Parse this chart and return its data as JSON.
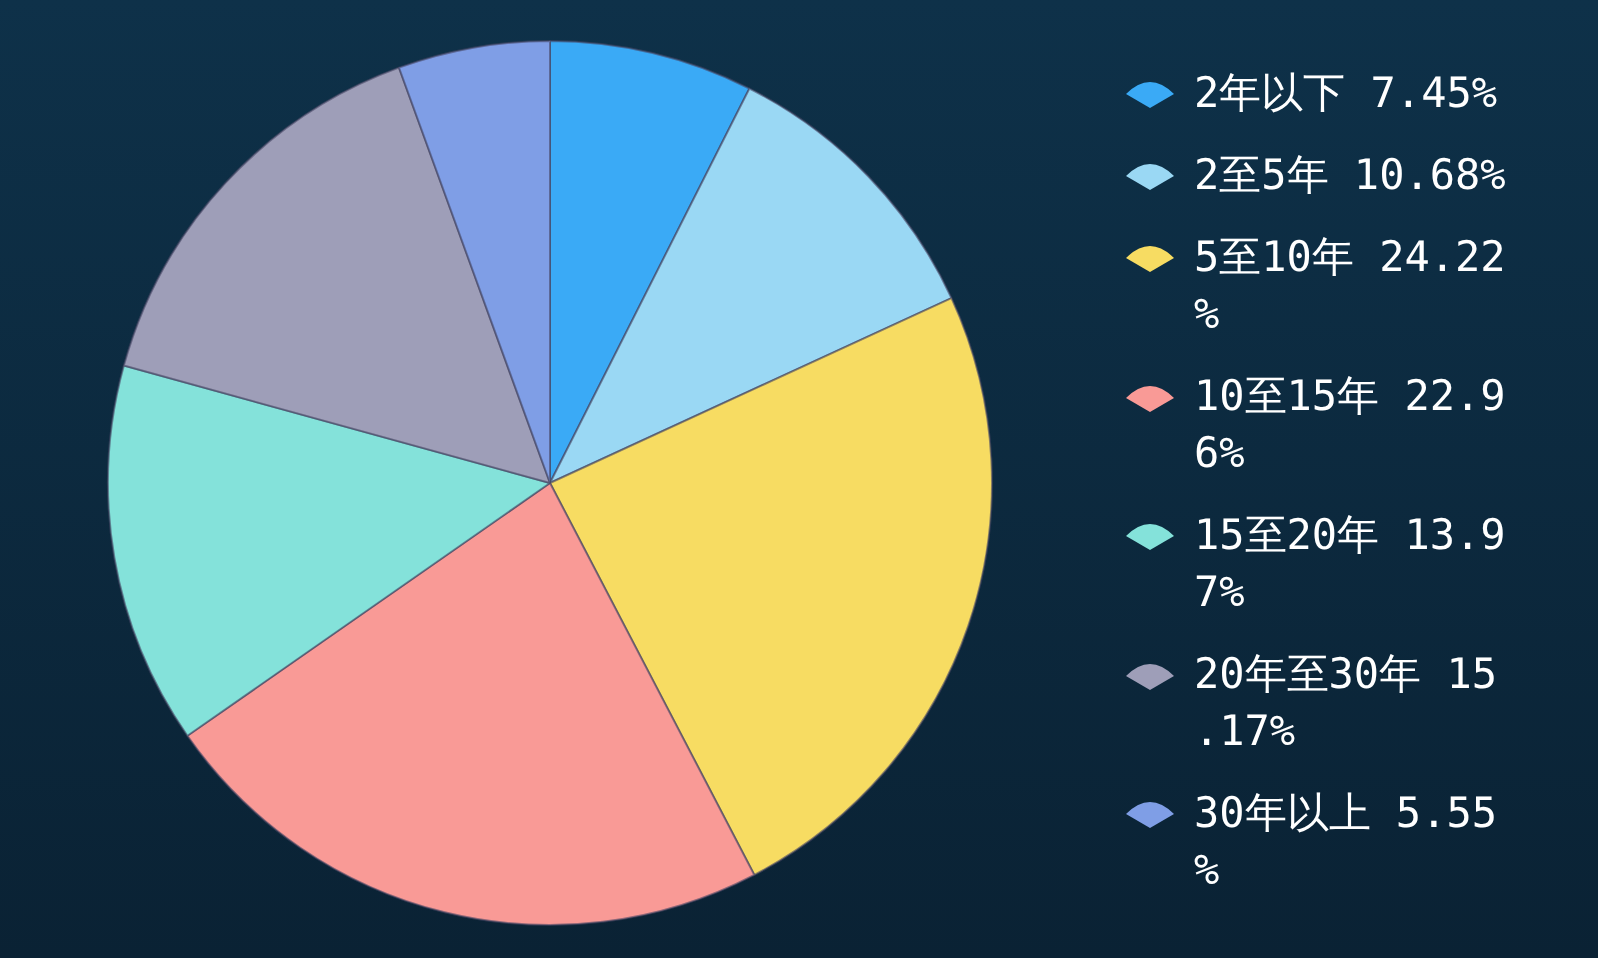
{
  "chart_data": {
    "type": "pie",
    "categories": [
      "2年以下",
      "2至5年",
      "5至10年",
      "10至15年",
      "15至20年",
      "20年至30年",
      "30年以上"
    ],
    "values": [
      7.45,
      10.68,
      24.22,
      22.96,
      13.97,
      15.17,
      5.55
    ],
    "value_labels": [
      "7.45%",
      "10.68%",
      "24.22%",
      "22.96%",
      "13.97%",
      "15.17%",
      "5.55%"
    ],
    "colors": [
      "#3aaaf6",
      "#9ad8f4",
      "#f7dc62",
      "#f99a96",
      "#84e2da",
      "#9e9eb8",
      "#7f9ee6"
    ],
    "legend": "right"
  }
}
